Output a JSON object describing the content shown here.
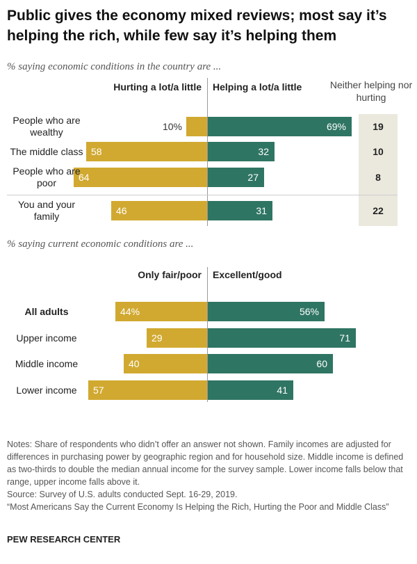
{
  "title": "Public gives the economy mixed reviews; most say it’s helping the rich, while few say it’s helping them",
  "chart_data": [
    {
      "type": "diverging_bar",
      "subtitle": "% saying economic conditions in the country are ...",
      "categories": [
        "People who are wealthy",
        "The middle class",
        "People who are poor",
        "You and your family"
      ],
      "series": [
        {
          "name": "Hurting a lot/a little",
          "color": "#d1a930",
          "side": "left",
          "values": [
            10,
            58,
            64,
            46
          ],
          "value_labels": [
            "10%",
            "58",
            "64",
            "46"
          ]
        },
        {
          "name": "Helping a lot/a little",
          "color": "#2f7563",
          "side": "right",
          "values": [
            69,
            32,
            27,
            31
          ],
          "value_labels": [
            "69%",
            "32",
            "27",
            "31"
          ]
        }
      ],
      "extra_column": {
        "name": "Neither helping nor hurting",
        "values": [
          19,
          10,
          8,
          22
        ]
      }
    },
    {
      "type": "diverging_bar",
      "subtitle": "% saying current economic conditions are ...",
      "categories": [
        "All adults",
        "Upper income",
        "Middle income",
        "Lower income"
      ],
      "series": [
        {
          "name": "Only fair/poor",
          "color": "#d1a930",
          "side": "left",
          "values": [
            44,
            29,
            40,
            57
          ],
          "value_labels": [
            "44%",
            "29",
            "40",
            "57"
          ]
        },
        {
          "name": "Excellent/good",
          "color": "#2f7563",
          "side": "right",
          "values": [
            56,
            71,
            60,
            41
          ],
          "value_labels": [
            "56%",
            "71",
            "60",
            "41"
          ]
        }
      ]
    }
  ],
  "notes": "Notes: Share of respondents who didn’t offer an answer not shown.  Family incomes are adjusted for differences in purchasing power by geographic region and for household size. Middle income is defined as two-thirds to double the median annual income for the survey sample. Lower income falls below that range, upper income falls above it.",
  "source": "Source: Survey of U.S. adults conducted Sept. 16-29, 2019.",
  "report": "“Most Americans Say the Current Economy Is Helping the Rich, Hurting the Poor and Middle Class”",
  "credit": "PEW RESEARCH CENTER"
}
